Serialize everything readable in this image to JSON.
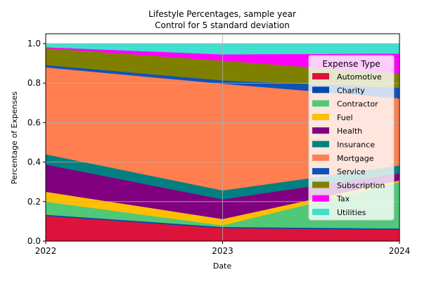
{
  "chart_data": {
    "type": "area",
    "title": "Lifestyle Percentages, sample year",
    "subtitle": "Control for 5 standard deviation",
    "xlabel": "Date",
    "ylabel": "Percentage of Expenses",
    "x": [
      "2022",
      "2023",
      "2024"
    ],
    "xlim": [
      "2022",
      "2024"
    ],
    "ylim": [
      0.0,
      1.05
    ],
    "y_ticks": [
      "0.0",
      "0.2",
      "0.4",
      "0.6",
      "0.8",
      "1.0"
    ],
    "grid": true,
    "stacked": true,
    "legend": {
      "title": "Expense Type",
      "placement": "upper-right"
    },
    "series": [
      {
        "name": "Automotive",
        "color": "#dc143c",
        "values": [
          0.128,
          0.066,
          0.058
        ]
      },
      {
        "name": "Charity",
        "color": "#0047ab",
        "values": [
          0.006,
          0.006,
          0.006
        ]
      },
      {
        "name": "Contractor",
        "color": "#50c878",
        "values": [
          0.066,
          0.008,
          0.236
        ]
      },
      {
        "name": "Fuel",
        "color": "#ffbf00",
        "values": [
          0.05,
          0.032,
          0.008
        ]
      },
      {
        "name": "Health",
        "color": "#800080",
        "values": [
          0.138,
          0.1,
          0.035
        ]
      },
      {
        "name": "Insurance",
        "color": "#008080",
        "values": [
          0.052,
          0.045,
          0.04
        ]
      },
      {
        "name": "Mortgage",
        "color": "#ff7f50",
        "values": [
          0.44,
          0.54,
          0.34
        ]
      },
      {
        "name": "Service",
        "color": "#0f52ba",
        "values": [
          0.012,
          0.017,
          0.053
        ]
      },
      {
        "name": "Subscription",
        "color": "#808000",
        "values": [
          0.085,
          0.1,
          0.072
        ]
      },
      {
        "name": "Tax",
        "color": "#ff00ff",
        "values": [
          0.005,
          0.032,
          0.102
        ]
      },
      {
        "name": "Utilities",
        "color": "#40e0d0",
        "values": [
          0.018,
          0.054,
          0.05
        ]
      }
    ]
  }
}
